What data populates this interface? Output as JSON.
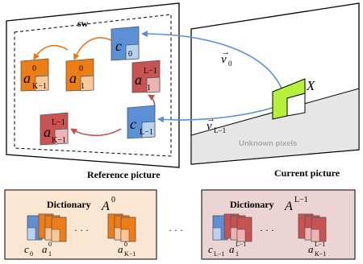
{
  "labels": {
    "sw": "sw",
    "c0": "c",
    "c0_sub": "0",
    "cL1": "c",
    "cL1_sub": "L−1",
    "aK1_0_base": "a",
    "aK1_0_sup": "0",
    "aK1_0_sub": "K−1",
    "a1_0_base": "a",
    "a1_0_sup": "0",
    "a1_0_sub": "1",
    "a1_L1_base": "a",
    "a1_L1_sup": "L−1",
    "a1_L1_sub": "1",
    "aK1_L1_base": "a",
    "aK1_L1_sup": "L−1",
    "aK1_L1_sub": "K−1",
    "v0_base": "v",
    "v0_sub": "0",
    "vL1_base": "v",
    "vL1_sub": "L−1",
    "vector_arrow": "→",
    "block_x": "X",
    "unknown_pixels": "Unknown pixels",
    "reference_picture": "Reference picture",
    "current_picture": "Current picture",
    "dictionary_0": "Dictionary",
    "dictionary_0_sym": "A",
    "dictionary_0_sup": "0",
    "dictionary_L1": "Dictionary",
    "dictionary_L1_sym": "A",
    "dictionary_L1_sup": "L−1",
    "ellipsis_inner": "· · ·",
    "ellipsis_between": "· · ·",
    "d0_c_base": "c",
    "d0_c_sub": "0",
    "d0_a1_base": "a",
    "d0_a1_sup": "0",
    "d0_a1_sub": "1",
    "d0_aK_base": "a",
    "d0_aK_sup": "0",
    "d0_aK_sub": "K−1",
    "dL_c_base": "c",
    "dL_c_sub": "L−1",
    "dL_a1_base": "a",
    "dL_a1_sup": "L−1",
    "dL_a1_sub": "1",
    "dL_aK_base": "a",
    "dL_aK_sup": "L−1",
    "dL_aK_sub": "K−1"
  },
  "colors": {
    "blue_fill": "#5b8fd6",
    "blue_light": "#b9d2f0",
    "orange_fill": "#ef7d16",
    "orange_light": "#fbc89a",
    "red_fill": "#c95252",
    "red_light": "#eeb3b3",
    "green_fill": "#b7f03a",
    "arrow_blue": "#5b8fd6",
    "arrow_orange": "#e5781a",
    "arrow_red": "#c44c4c",
    "dict0_bg": "#fbe6d2",
    "dictL_bg": "#ecd3d4",
    "gray_band": "#e6e6e6"
  }
}
